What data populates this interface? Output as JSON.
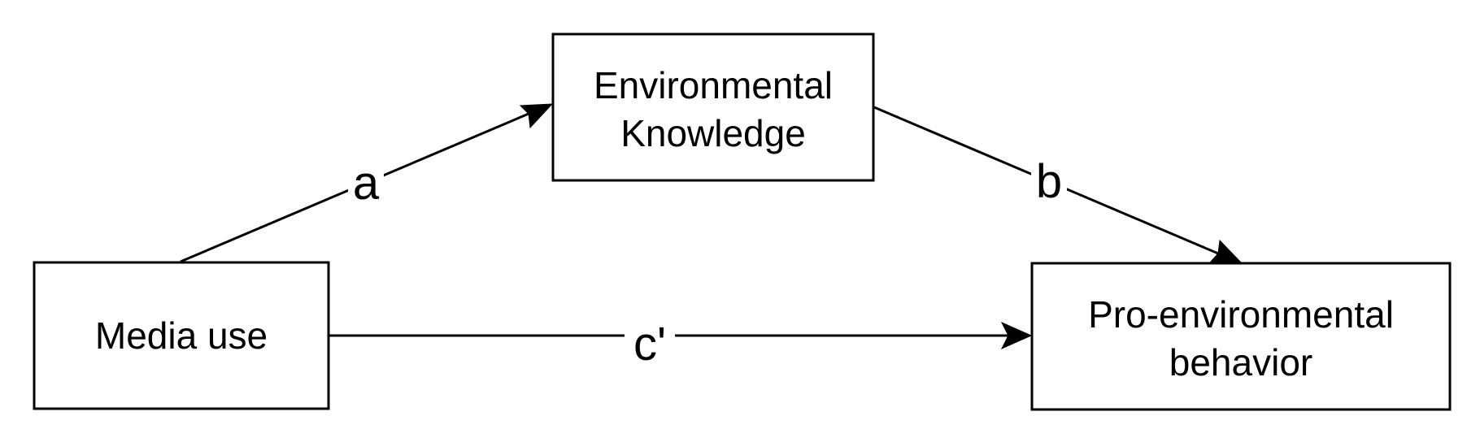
{
  "nodes": {
    "media_use": {
      "lines": [
        "Media use"
      ]
    },
    "environmental_knowledge": {
      "lines": [
        "Environmental",
        "Knowledge"
      ]
    },
    "pro_environmental_behavior": {
      "lines": [
        "Pro-environmental",
        "behavior"
      ]
    }
  },
  "paths": {
    "a": {
      "label": "a",
      "from": "Media use",
      "to": "Environmental Knowledge"
    },
    "b": {
      "label": "b",
      "from": "Environmental Knowledge",
      "to": "Pro-environmental behavior"
    },
    "c_prime": {
      "label": "c'",
      "from": "Media use",
      "to": "Pro-environmental behavior"
    }
  },
  "colors": {
    "stroke": "#000000",
    "background": "#ffffff"
  }
}
